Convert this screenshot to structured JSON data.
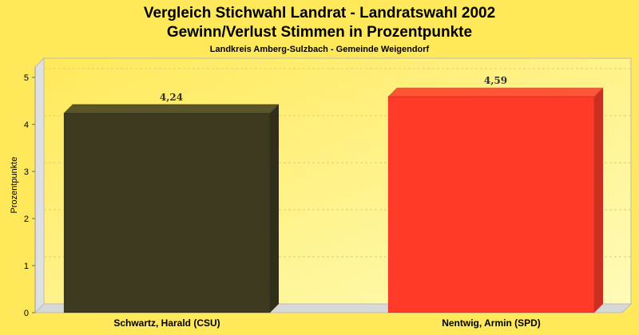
{
  "chart_data": {
    "type": "bar",
    "title": "Vergleich Stichwahl Landrat - Landratswahl 2002",
    "subtitle": "Gewinn/Verlust Stimmen in Prozentpunkte",
    "subsubtitle": "Landkreis Amberg-Sulzbach - Gemeinde Weigendorf",
    "ylabel": "Prozentpunkte",
    "xlabel": "",
    "ylim": [
      0,
      5
    ],
    "yticks": [
      "0",
      "1",
      "2",
      "3",
      "4",
      "5"
    ],
    "categories": [
      "Schwartz, Harald (CSU)",
      "Nentwig, Armin (SPD)"
    ],
    "values": [
      4.24,
      4.59
    ],
    "labels": [
      "4,24",
      "4,59"
    ],
    "colors": [
      "#3d3a1f",
      "#ff3a28"
    ],
    "grid": true
  }
}
